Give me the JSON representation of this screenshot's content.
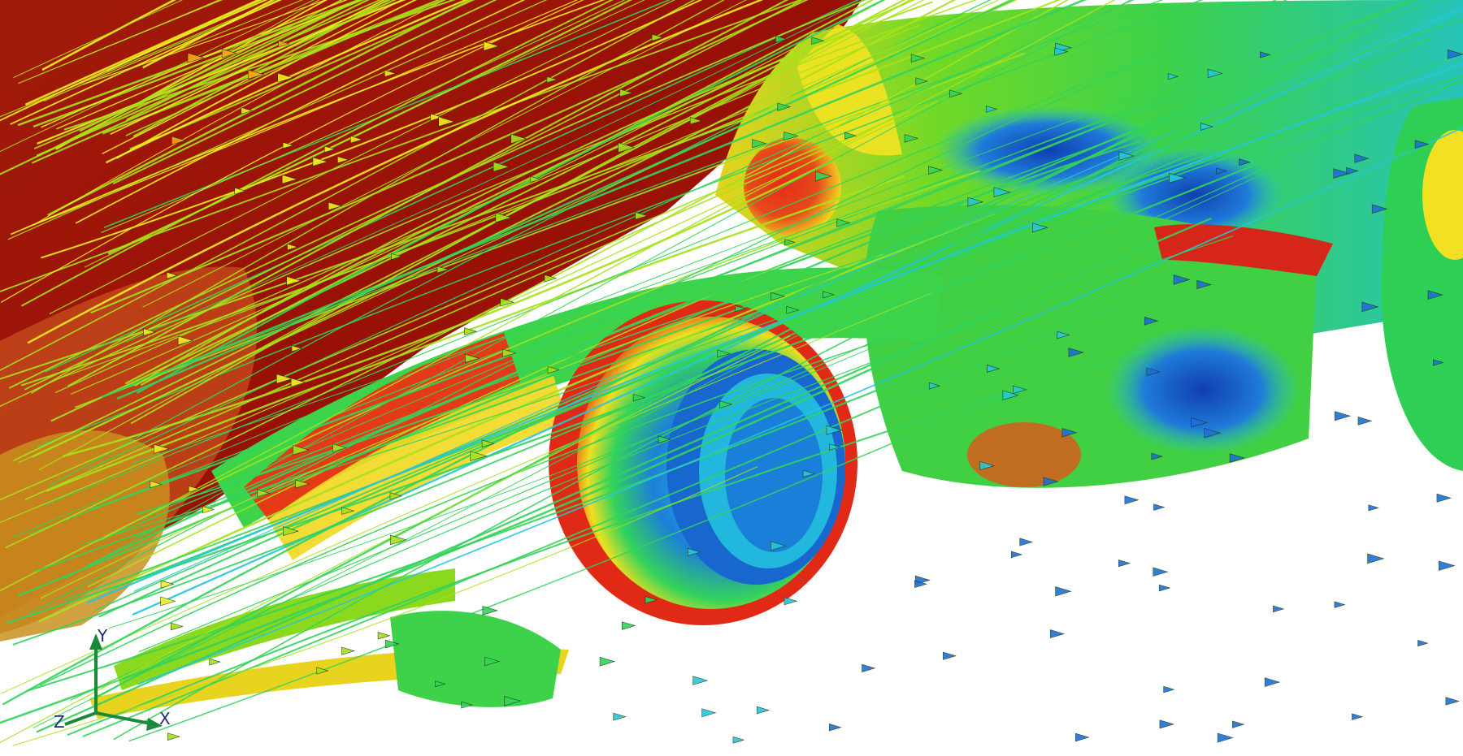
{
  "scene": {
    "kind": "cfd-streamline-render",
    "subject": "open-wheel-race-car",
    "colormap": [
      "#0a2a8a",
      "#1f6fd6",
      "#25c7d9",
      "#33d35b",
      "#a6e21b",
      "#f4ee21",
      "#f6a51c",
      "#e8321a",
      "#9c1207"
    ],
    "background_pressure_color": "#9c1207",
    "ground_color": "#ffffff"
  },
  "axes_triad": {
    "y_label": "Y",
    "x_label": "X",
    "z_label": "Z",
    "color": "#1a8a3a"
  }
}
